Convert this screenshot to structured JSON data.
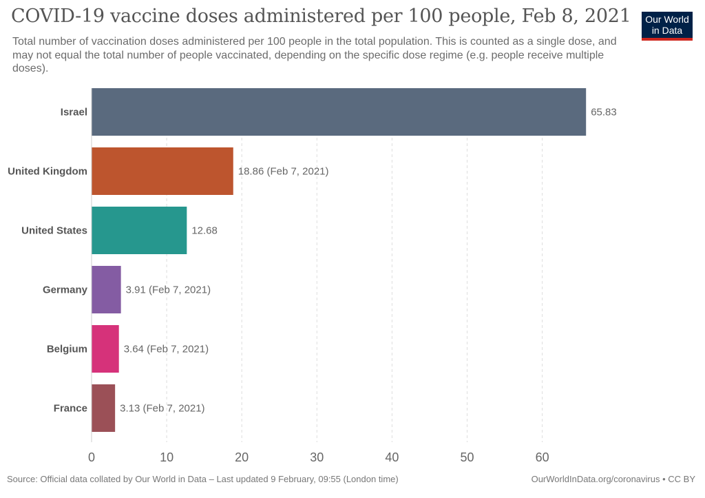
{
  "header": {
    "title": "COVID-19 vaccine doses administered per 100 people, Feb 8, 2021",
    "subtitle": "Total number of vaccination doses administered per 100 people in the total population. This is counted as a single dose, and may not equal the total number of people vaccinated, depending on the specific dose regime (e.g. people receive multiple doses).",
    "logo_line1": "Our World",
    "logo_line2": "in Data"
  },
  "footer": {
    "source": "Source: Official data collated by Our World in Data – Last updated 9 February, 09:55 (London time)",
    "credit": "OurWorldInData.org/coronavirus • CC BY"
  },
  "colors": {
    "logo_bg": "#002147",
    "logo_accent": "#ce261e"
  },
  "chart_data": {
    "type": "bar",
    "orientation": "horizontal",
    "title": "COVID-19 vaccine doses administered per 100 people, Feb 8, 2021",
    "xlabel": "",
    "ylabel": "",
    "xlim": [
      0,
      66
    ],
    "xticks": [
      0,
      10,
      20,
      30,
      40,
      50,
      60
    ],
    "grid": "vertical-dashed",
    "categories": [
      "Israel",
      "United Kingdom",
      "United States",
      "Germany",
      "Belgium",
      "France"
    ],
    "values": [
      65.83,
      18.86,
      12.68,
      3.91,
      3.64,
      3.13
    ],
    "labels": [
      "65.83",
      "18.86 (Feb 7, 2021)",
      "12.68",
      "3.91 (Feb 7, 2021)",
      "3.64 (Feb 7, 2021)",
      "3.13 (Feb 7, 2021)"
    ],
    "colors": [
      "#5a6a7e",
      "#bd552e",
      "#26978e",
      "#845ca3",
      "#d6327a",
      "#9b5057"
    ]
  }
}
